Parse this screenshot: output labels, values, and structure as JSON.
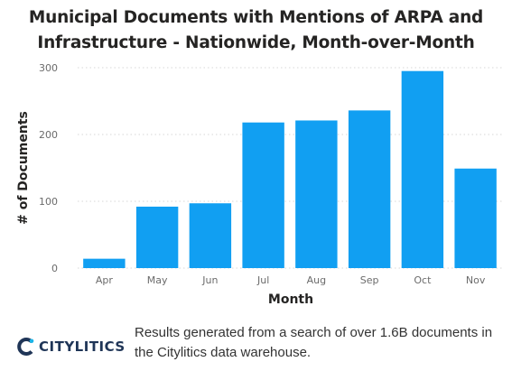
{
  "header": {
    "title_line1": "Municipal Documents with Mentions of ARPA and",
    "title_line2": "Infrastructure - Nationwide, Month-over-Month"
  },
  "footer": {
    "brand": "CITYLITICS",
    "note": "Results generated from a search of over 1.6B documents in the Citylitics data warehouse."
  },
  "colors": {
    "bar": "#119ff2",
    "grid": "#d7d7d7",
    "tick": "#6b6b6b",
    "brand": "#1f3557"
  },
  "chart_data": {
    "type": "bar",
    "title": "Municipal Documents with Mentions of ARPA and Infrastructure - Nationwide, Month-over-Month",
    "xlabel": "Month",
    "ylabel": "# of Documents",
    "categories": [
      "Apr",
      "May",
      "Jun",
      "Jul",
      "Aug",
      "Sep",
      "Oct",
      "Nov"
    ],
    "values": [
      14,
      92,
      97,
      218,
      221,
      236,
      295,
      149
    ],
    "yticks": [
      0,
      100,
      200,
      300
    ],
    "ylim": [
      0,
      300
    ],
    "grid": "horizontal dotted"
  }
}
